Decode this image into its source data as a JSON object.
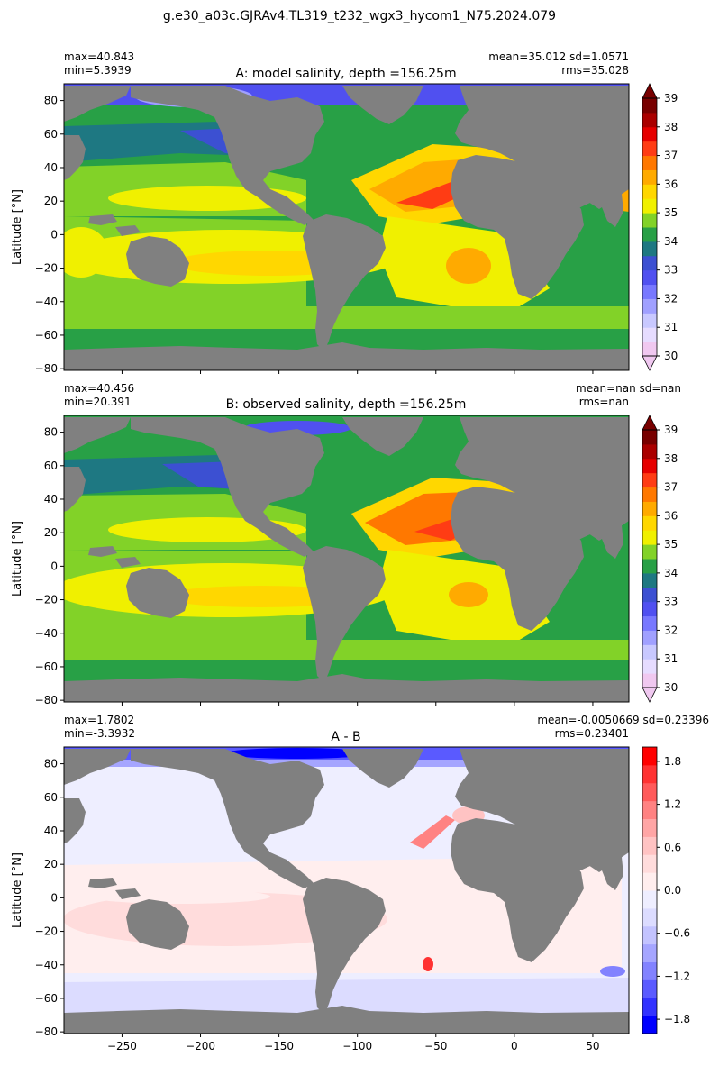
{
  "figure_title": "g.e30_a03c.GJRAv4.TL319_t232_wgx3_hycom1_N75.2024.079",
  "colors": {
    "land": "#808080",
    "salinity_levels": [
      "#f0c8f0",
      "#e6dcff",
      "#c8c8ff",
      "#a0a0ff",
      "#7878ff",
      "#5050f0",
      "#3c50d2",
      "#1e7882",
      "#28a046",
      "#82d228",
      "#f0f000",
      "#ffd700",
      "#ffaa00",
      "#ff7800",
      "#ff3c14",
      "#e60000",
      "#aa0000",
      "#780000"
    ],
    "diff_levels": [
      "#0000ff",
      "#3232ff",
      "#5a5aff",
      "#8282ff",
      "#a5a5ff",
      "#c3c3ff",
      "#dcdcff",
      "#eeeeff",
      "#ffeeee",
      "#ffdcdc",
      "#ffc3c3",
      "#ffa5a5",
      "#ff8282",
      "#ff5a5a",
      "#ff3232",
      "#ff0000"
    ]
  },
  "chart_data": [
    {
      "type": "heatmap",
      "title": "A: model salinity, depth =156.25m",
      "stats_left": [
        "max=40.843",
        "min=5.3939"
      ],
      "stats_right": [
        "mean=35.012 sd=1.0571",
        "rms=35.028"
      ],
      "ylabel": "Latitude [°N]",
      "xlabel": "",
      "xlim": [
        -287,
        73
      ],
      "ylim": [
        -81,
        90
      ],
      "yticks": [
        -80,
        -60,
        -40,
        -20,
        0,
        20,
        40,
        60,
        80
      ],
      "xticks": [
        -250,
        -200,
        -150,
        -100,
        -50,
        0,
        50
      ],
      "show_xtick_labels": false,
      "colorbar": {
        "min": 30,
        "max": 39,
        "ticks": [
          "30",
          "31",
          "32",
          "33",
          "34",
          "35",
          "36",
          "37",
          "38",
          "39"
        ],
        "tick_values": [
          30,
          31,
          32,
          33,
          34,
          35,
          36,
          37,
          38,
          39
        ],
        "extend": "both",
        "palette": "salinity_levels"
      }
    },
    {
      "type": "heatmap",
      "title": "B: observed salinity, depth =156.25m",
      "stats_left": [
        "max=40.456",
        "min=20.391"
      ],
      "stats_right": [
        "mean=nan sd=nan",
        "rms=nan"
      ],
      "ylabel": "Latitude [°N]",
      "xlabel": "",
      "xlim": [
        -287,
        73
      ],
      "ylim": [
        -81,
        90
      ],
      "yticks": [
        -80,
        -60,
        -40,
        -20,
        0,
        20,
        40,
        60,
        80
      ],
      "xticks": [
        -250,
        -200,
        -150,
        -100,
        -50,
        0,
        50
      ],
      "show_xtick_labels": false,
      "colorbar": {
        "min": 30,
        "max": 39,
        "ticks": [
          "30",
          "31",
          "32",
          "33",
          "34",
          "35",
          "36",
          "37",
          "38",
          "39"
        ],
        "tick_values": [
          30,
          31,
          32,
          33,
          34,
          35,
          36,
          37,
          38,
          39
        ],
        "extend": "both",
        "palette": "salinity_levels"
      }
    },
    {
      "type": "heatmap",
      "title": "A - B",
      "stats_left": [
        "max=1.7802",
        "min=-3.3932"
      ],
      "stats_right": [
        "mean=-0.0050669 sd=0.23396",
        "rms=0.23401"
      ],
      "ylabel": "Latitude [°N]",
      "xlabel": "",
      "xlim": [
        -287,
        73
      ],
      "ylim": [
        -81,
        90
      ],
      "yticks": [
        -80,
        -60,
        -40,
        -20,
        0,
        20,
        40,
        60,
        80
      ],
      "xticks": [
        -250,
        -200,
        -150,
        -100,
        -50,
        0,
        50
      ],
      "show_xtick_labels": true,
      "colorbar": {
        "min": -2,
        "max": 2,
        "ticks": [
          "−1.8",
          "−1.2",
          "−0.6",
          "0.0",
          "0.6",
          "1.2",
          "1.8"
        ],
        "tick_values": [
          -1.8,
          -1.2,
          -0.6,
          0.0,
          0.6,
          1.2,
          1.8
        ],
        "extend": "neither",
        "palette": "diff_levels"
      }
    }
  ]
}
